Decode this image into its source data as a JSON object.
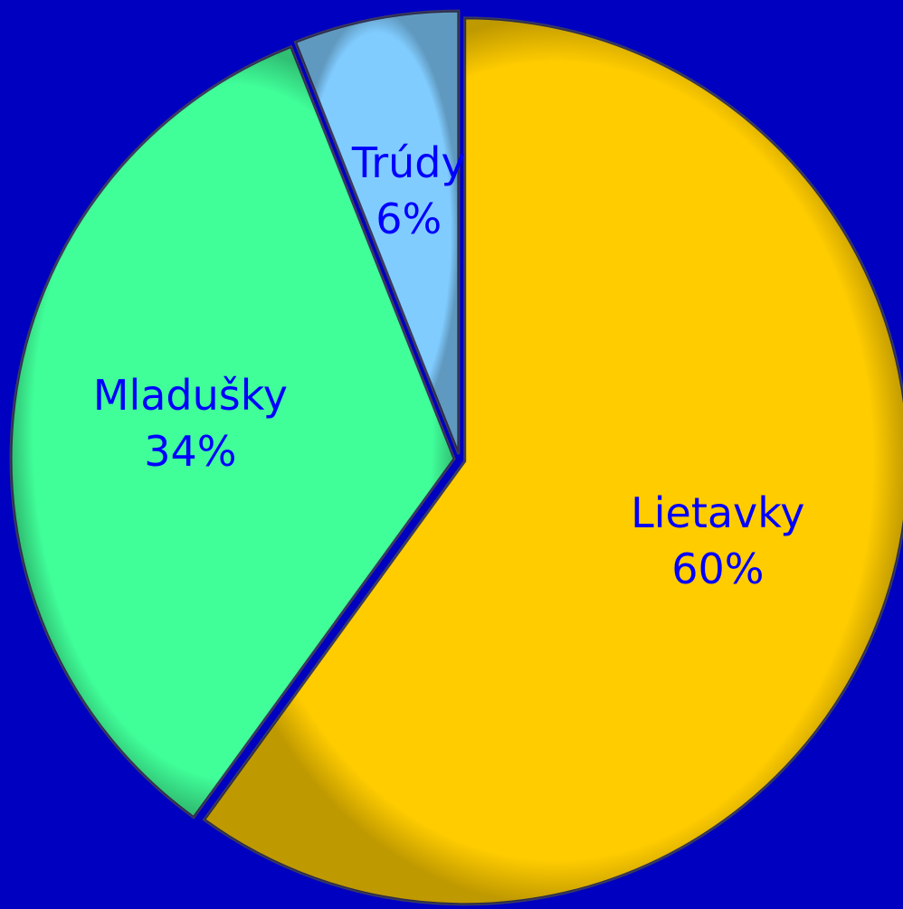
{
  "chart_data": {
    "type": "pie",
    "categories": [
      "Lietavky",
      "Mladušky",
      "Trúdy"
    ],
    "values": [
      60,
      34,
      6
    ],
    "value_labels": [
      "60%",
      "34%",
      "6%"
    ],
    "colors": [
      "#ffcc00",
      "#40ff99",
      "#80ccff"
    ]
  }
}
